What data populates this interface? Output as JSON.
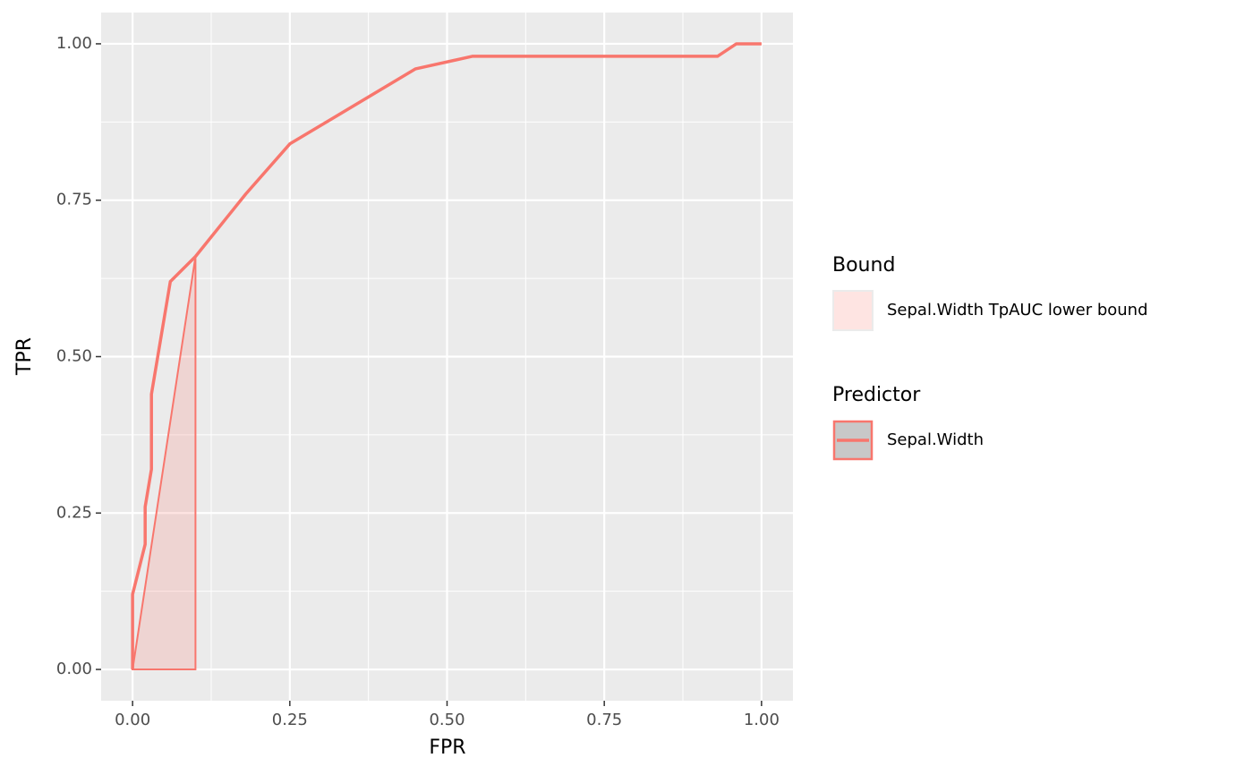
{
  "chart_data": {
    "type": "line",
    "x_label": "FPR",
    "y_label": "TPR",
    "xlim": [
      -0.05,
      1.05
    ],
    "ylim": [
      -0.05,
      1.05
    ],
    "xticks": [
      {
        "value": 0,
        "label": "0.00"
      },
      {
        "value": 0.25,
        "label": "0.25"
      },
      {
        "value": 0.5,
        "label": "0.50"
      },
      {
        "value": 0.75,
        "label": "0.75"
      },
      {
        "value": 1,
        "label": "1.00"
      }
    ],
    "yticks": [
      {
        "value": 0,
        "label": "0.00"
      },
      {
        "value": 0.25,
        "label": "0.25"
      },
      {
        "value": 0.5,
        "label": "0.50"
      },
      {
        "value": 0.75,
        "label": "0.75"
      },
      {
        "value": 1,
        "label": "1.00"
      }
    ],
    "grid": true,
    "areas": [
      {
        "group": "Bound",
        "name": "Sepal.Width TpAUC lower bound",
        "color": "#f8766d",
        "fill": "#f8766d",
        "x": [
          0,
          0.1,
          0.1
        ],
        "values": [
          0,
          0.66,
          0
        ]
      }
    ],
    "series": [
      {
        "group": "Predictor",
        "name": "Sepal.Width",
        "color": "#f8766d",
        "x": [
          0,
          0,
          0.02,
          0.02,
          0.03,
          0.03,
          0.06,
          0.1,
          0.18,
          0.25,
          0.45,
          0.54,
          0.93,
          0.96,
          1
        ],
        "values": [
          0,
          0.12,
          0.2,
          0.26,
          0.32,
          0.44,
          0.62,
          0.66,
          0.76,
          0.84,
          0.96,
          0.98,
          0.98,
          1,
          1
        ]
      }
    ]
  }
}
